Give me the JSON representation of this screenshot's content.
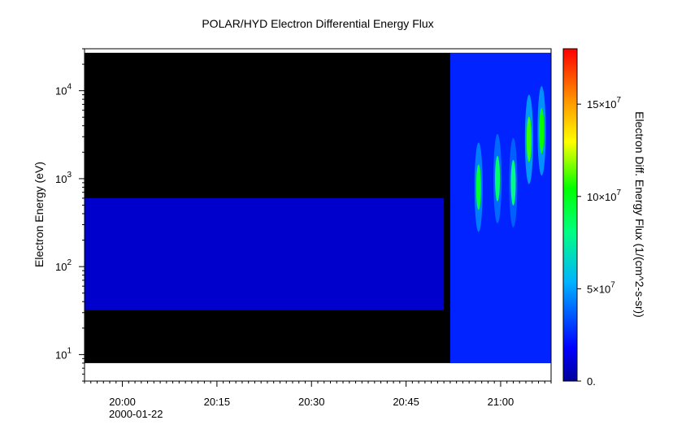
{
  "chart_data": {
    "type": "heatmap",
    "title": "POLAR/HYD  Electron Differential Energy Flux",
    "ylabel": "Electron Energy (eV)",
    "colorbar_label": "Electron Diff. Energy Flux (1/(cm^2-s-sr))",
    "y_scale": "log",
    "y_range_eV": [
      5,
      30000
    ],
    "x_range_minutes_from_1950": [
      -6,
      68
    ],
    "date_label": "2000-01-22",
    "x_ticks": [
      {
        "label": "20:00",
        "minutes": 0
      },
      {
        "label": "20:15",
        "minutes": 15
      },
      {
        "label": "20:30",
        "minutes": 30
      },
      {
        "label": "20:45",
        "minutes": 45
      },
      {
        "label": "21:00",
        "minutes": 60
      }
    ],
    "y_ticks": [
      {
        "base": "10",
        "exp": "1",
        "value": 10
      },
      {
        "base": "10",
        "exp": "2",
        "value": 100
      },
      {
        "base": "10",
        "exp": "3",
        "value": 1000
      },
      {
        "base": "10",
        "exp": "4",
        "value": 10000
      }
    ],
    "colorbar_range": [
      0,
      180000000
    ],
    "colorbar_ticks": [
      {
        "label": "0.",
        "value": 0,
        "sup": ""
      },
      {
        "label": "5×10",
        "sup": "7",
        "value": 50000000
      },
      {
        "label": "10×10",
        "sup": "7",
        "value": 100000000
      },
      {
        "label": "15×10",
        "sup": "7",
        "value": 150000000
      }
    ],
    "data_extent": {
      "time_start_minutes": -6,
      "time_end_minutes": 68,
      "energy_min_eV": 8,
      "energy_max_eV": 27000
    },
    "regions": [
      {
        "time_start": -6,
        "time_end": 51,
        "energy_low_eV": 32,
        "energy_high_eV": 600,
        "flux": 9000000
      },
      {
        "time_start": 52,
        "time_end": 68,
        "energy_low_eV": 8,
        "energy_high_eV": 27000,
        "flux": 25000000
      }
    ],
    "hotspots": [
      {
        "time": 56.5,
        "energy_eV": 800,
        "flux": 95000000
      },
      {
        "time": 59.5,
        "energy_eV": 1000,
        "flux": 85000000
      },
      {
        "time": 62,
        "energy_eV": 900,
        "flux": 80000000
      },
      {
        "time": 64.5,
        "energy_eV": 2800,
        "flux": 110000000
      },
      {
        "time": 66.5,
        "energy_eV": 3500,
        "flux": 105000000
      }
    ]
  }
}
